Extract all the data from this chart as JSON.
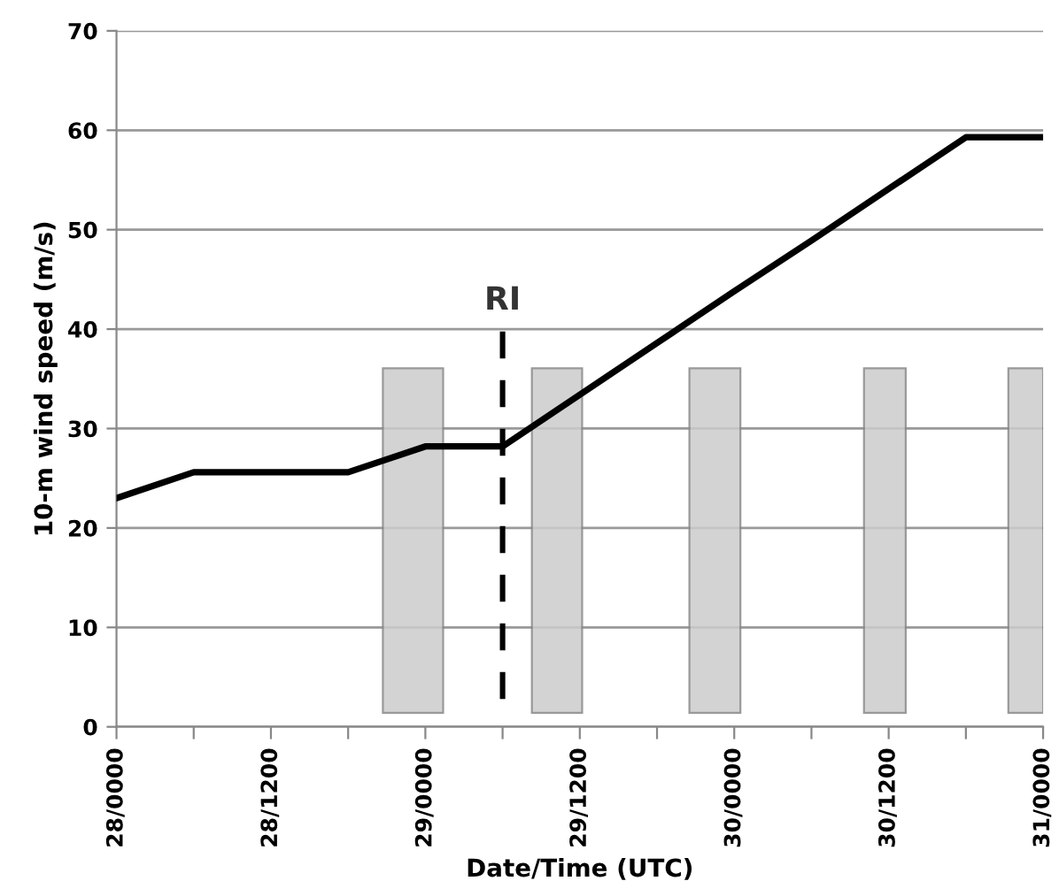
{
  "chart_data": {
    "type": "line",
    "xlabel": "Date/Time (UTC)",
    "ylabel": "10-m wind speed (m/s)",
    "categories": [
      "28/0000",
      null,
      "28/1200",
      null,
      "29/0000",
      null,
      "29/1200",
      null,
      "30/0000",
      null,
      "30/1200",
      null,
      "31/0000"
    ],
    "series": [
      {
        "color": "#000000",
        "values": [
          23.0,
          25.6,
          25.6,
          25.6,
          28.2,
          28.2,
          33.4,
          38.6,
          43.8,
          48.9,
          54.1,
          59.3,
          59.3
        ]
      }
    ],
    "ylim": [
      0,
      70
    ],
    "yticks": [
      0,
      10,
      20,
      30,
      40,
      50,
      60,
      70
    ],
    "grid": "y",
    "legend": false,
    "marker": "none",
    "line_style": "solid",
    "annotations": [
      "RI"
    ]
  }
}
